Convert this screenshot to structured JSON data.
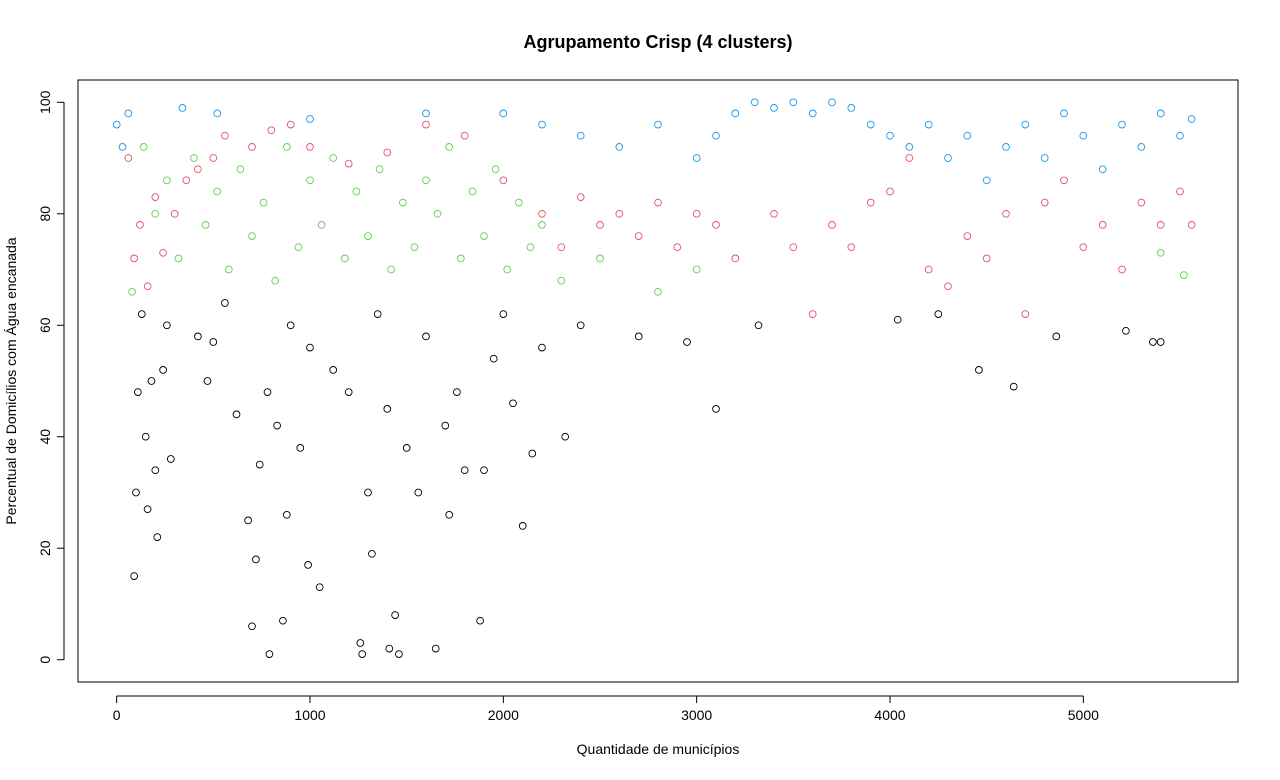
{
  "chart_data": {
    "type": "scatter",
    "title": "Agrupamento Crisp (4 clusters)",
    "xlabel": "Quantidade de municípios",
    "ylabel": "Percentual de Domicílios com Água encanada",
    "xlim": [
      -200,
      5800
    ],
    "ylim": [
      -4,
      104
    ],
    "x_ticks": [
      0,
      1000,
      2000,
      3000,
      4000,
      5000
    ],
    "y_ticks": [
      0,
      20,
      40,
      60,
      80,
      100
    ],
    "x_tick_labels": [
      "0",
      "1000",
      "2000",
      "3000",
      "4000",
      "5000"
    ],
    "y_tick_labels": [
      "0",
      "20",
      "40",
      "60",
      "80",
      "100"
    ],
    "grid": false,
    "legend": "none",
    "marker": "open-circle",
    "series": [
      {
        "color": "#000000",
        "points": [
          [
            90,
            15
          ],
          [
            100,
            30
          ],
          [
            110,
            48
          ],
          [
            130,
            62
          ],
          [
            150,
            40
          ],
          [
            160,
            27
          ],
          [
            180,
            50
          ],
          [
            200,
            34
          ],
          [
            210,
            22
          ],
          [
            240,
            52
          ],
          [
            260,
            60
          ],
          [
            280,
            36
          ],
          [
            420,
            58
          ],
          [
            470,
            50
          ],
          [
            500,
            57
          ],
          [
            560,
            64
          ],
          [
            620,
            44
          ],
          [
            680,
            25
          ],
          [
            700,
            6
          ],
          [
            720,
            18
          ],
          [
            740,
            35
          ],
          [
            780,
            48
          ],
          [
            790,
            1
          ],
          [
            830,
            42
          ],
          [
            860,
            7
          ],
          [
            880,
            26
          ],
          [
            900,
            60
          ],
          [
            950,
            38
          ],
          [
            990,
            17
          ],
          [
            1000,
            56
          ],
          [
            1050,
            13
          ],
          [
            1120,
            52
          ],
          [
            1200,
            48
          ],
          [
            1260,
            3
          ],
          [
            1270,
            1
          ],
          [
            1300,
            30
          ],
          [
            1320,
            19
          ],
          [
            1350,
            62
          ],
          [
            1400,
            45
          ],
          [
            1410,
            2
          ],
          [
            1440,
            8
          ],
          [
            1460,
            1
          ],
          [
            1500,
            38
          ],
          [
            1560,
            30
          ],
          [
            1600,
            58
          ],
          [
            1650,
            2
          ],
          [
            1700,
            42
          ],
          [
            1720,
            26
          ],
          [
            1760,
            48
          ],
          [
            1800,
            34
          ],
          [
            1880,
            7
          ],
          [
            1900,
            34
          ],
          [
            1950,
            54
          ],
          [
            2000,
            62
          ],
          [
            2050,
            46
          ],
          [
            2100,
            24
          ],
          [
            2150,
            37
          ],
          [
            2200,
            56
          ],
          [
            2320,
            40
          ],
          [
            2400,
            60
          ],
          [
            2700,
            58
          ],
          [
            2950,
            57
          ],
          [
            3100,
            45
          ],
          [
            3320,
            60
          ],
          [
            4040,
            61
          ],
          [
            4250,
            62
          ],
          [
            4460,
            52
          ],
          [
            4640,
            49
          ],
          [
            4860,
            58
          ],
          [
            5220,
            59
          ],
          [
            5360,
            57
          ],
          [
            5400,
            57
          ]
        ]
      },
      {
        "color": "#df536b",
        "points": [
          [
            60,
            90
          ],
          [
            90,
            72
          ],
          [
            120,
            78
          ],
          [
            160,
            67
          ],
          [
            200,
            83
          ],
          [
            240,
            73
          ],
          [
            300,
            80
          ],
          [
            360,
            86
          ],
          [
            420,
            88
          ],
          [
            500,
            90
          ],
          [
            560,
            94
          ],
          [
            700,
            92
          ],
          [
            800,
            95
          ],
          [
            900,
            96
          ],
          [
            1000,
            92
          ],
          [
            1200,
            89
          ],
          [
            1400,
            91
          ],
          [
            1600,
            96
          ],
          [
            1800,
            94
          ],
          [
            2000,
            86
          ],
          [
            2200,
            80
          ],
          [
            2300,
            74
          ],
          [
            2400,
            83
          ],
          [
            2500,
            78
          ],
          [
            2600,
            80
          ],
          [
            2700,
            76
          ],
          [
            2800,
            82
          ],
          [
            2900,
            74
          ],
          [
            3000,
            80
          ],
          [
            3100,
            78
          ],
          [
            3200,
            72
          ],
          [
            3400,
            80
          ],
          [
            3500,
            74
          ],
          [
            3600,
            62
          ],
          [
            3700,
            78
          ],
          [
            3800,
            74
          ],
          [
            3900,
            82
          ],
          [
            4000,
            84
          ],
          [
            4100,
            90
          ],
          [
            4200,
            70
          ],
          [
            4300,
            67
          ],
          [
            4400,
            76
          ],
          [
            4500,
            72
          ],
          [
            4600,
            80
          ],
          [
            4700,
            62
          ],
          [
            4800,
            82
          ],
          [
            4900,
            86
          ],
          [
            5000,
            74
          ],
          [
            5100,
            78
          ],
          [
            5200,
            70
          ],
          [
            5300,
            82
          ],
          [
            5400,
            78
          ],
          [
            5500,
            84
          ],
          [
            5560,
            78
          ]
        ]
      },
      {
        "color": "#61d04f",
        "points": [
          [
            80,
            66
          ],
          [
            140,
            92
          ],
          [
            200,
            80
          ],
          [
            260,
            86
          ],
          [
            320,
            72
          ],
          [
            400,
            90
          ],
          [
            460,
            78
          ],
          [
            520,
            84
          ],
          [
            580,
            70
          ],
          [
            640,
            88
          ],
          [
            700,
            76
          ],
          [
            760,
            82
          ],
          [
            820,
            68
          ],
          [
            880,
            92
          ],
          [
            940,
            74
          ],
          [
            1000,
            86
          ],
          [
            1060,
            78
          ],
          [
            1120,
            90
          ],
          [
            1180,
            72
          ],
          [
            1240,
            84
          ],
          [
            1300,
            76
          ],
          [
            1360,
            88
          ],
          [
            1420,
            70
          ],
          [
            1480,
            82
          ],
          [
            1540,
            74
          ],
          [
            1600,
            86
          ],
          [
            1660,
            80
          ],
          [
            1720,
            92
          ],
          [
            1780,
            72
          ],
          [
            1840,
            84
          ],
          [
            1900,
            76
          ],
          [
            1960,
            88
          ],
          [
            2020,
            70
          ],
          [
            2080,
            82
          ],
          [
            2140,
            74
          ],
          [
            2200,
            78
          ],
          [
            2300,
            68
          ],
          [
            2500,
            72
          ],
          [
            2800,
            66
          ],
          [
            3000,
            70
          ],
          [
            5400,
            73
          ],
          [
            5520,
            69
          ]
        ]
      },
      {
        "color": "#2297e6",
        "points": [
          [
            0,
            96
          ],
          [
            30,
            92
          ],
          [
            60,
            98
          ],
          [
            340,
            99
          ],
          [
            520,
            98
          ],
          [
            1000,
            97
          ],
          [
            1600,
            98
          ],
          [
            2000,
            98
          ],
          [
            2200,
            96
          ],
          [
            2400,
            94
          ],
          [
            2600,
            92
          ],
          [
            2800,
            96
          ],
          [
            3000,
            90
          ],
          [
            3100,
            94
          ],
          [
            3200,
            98
          ],
          [
            3300,
            100
          ],
          [
            3400,
            99
          ],
          [
            3500,
            100
          ],
          [
            3600,
            98
          ],
          [
            3700,
            100
          ],
          [
            3800,
            99
          ],
          [
            3900,
            96
          ],
          [
            4000,
            94
          ],
          [
            4100,
            92
          ],
          [
            4200,
            96
          ],
          [
            4300,
            90
          ],
          [
            4400,
            94
          ],
          [
            4500,
            86
          ],
          [
            4600,
            92
          ],
          [
            4700,
            96
          ],
          [
            4800,
            90
          ],
          [
            4900,
            98
          ],
          [
            5000,
            94
          ],
          [
            5100,
            88
          ],
          [
            5200,
            96
          ],
          [
            5300,
            92
          ],
          [
            5400,
            98
          ],
          [
            5500,
            94
          ],
          [
            5560,
            97
          ]
        ]
      }
    ]
  }
}
